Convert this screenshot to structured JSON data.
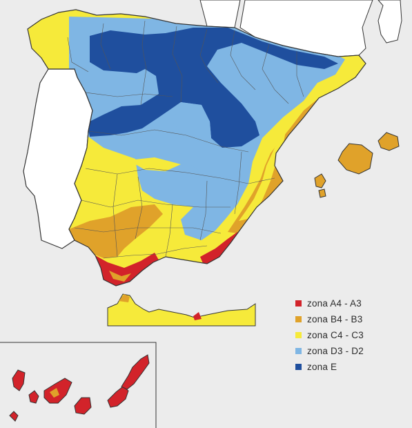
{
  "map": {
    "colors": {
      "zone_a": "#d2232a",
      "zone_b": "#e0a22a",
      "zone_c": "#f6ea3a",
      "zone_d": "#7fb6e4",
      "zone_e": "#1f4f9e",
      "portugal": "#ffffff",
      "sea": "#ececec",
      "border": "#333333"
    }
  },
  "legend": {
    "items": [
      {
        "label": "zona A4 - A3",
        "color": "#d2232a"
      },
      {
        "label": "zona B4 - B3",
        "color": "#e0a22a"
      },
      {
        "label": "zona C4 - C3",
        "color": "#f6ea3a"
      },
      {
        "label": "zona D3 - D2",
        "color": "#7fb6e4"
      },
      {
        "label": "zona E",
        "color": "#1f4f9e"
      }
    ]
  }
}
